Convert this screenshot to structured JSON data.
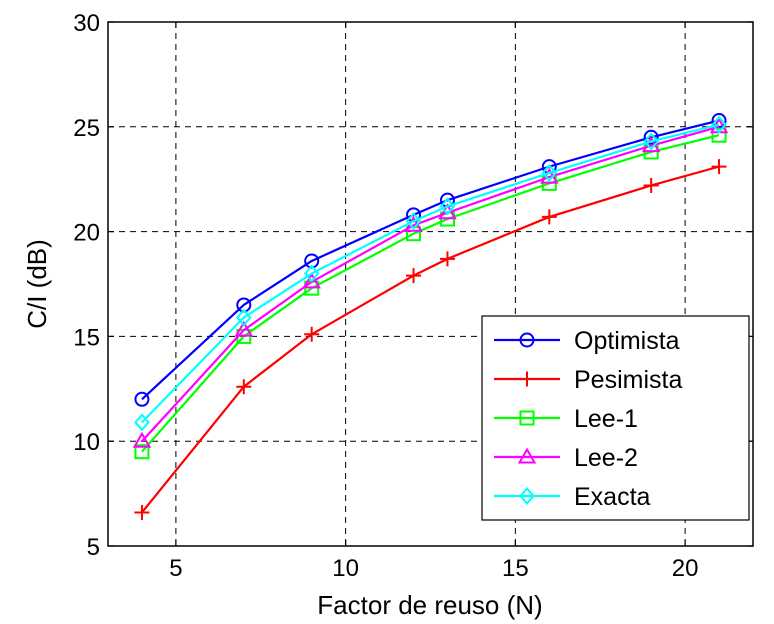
{
  "chart_data": {
    "type": "line",
    "xlabel": "Factor de reuso (N)",
    "ylabel": "C/I (dB)",
    "xlim": [
      3,
      22
    ],
    "ylim": [
      5,
      30
    ],
    "xticks": [
      5,
      10,
      15,
      20
    ],
    "yticks": [
      5,
      10,
      15,
      20,
      25,
      30
    ],
    "grid": true,
    "legend_position": "bottom-right",
    "x": [
      4,
      7,
      9,
      12,
      13,
      16,
      19,
      21
    ],
    "series": [
      {
        "name": "Optimista",
        "color": "#0000ff",
        "marker": "circle",
        "values": [
          12.0,
          16.5,
          18.6,
          20.8,
          21.5,
          23.1,
          24.5,
          25.3
        ]
      },
      {
        "name": "Pesimista",
        "color": "#ff0000",
        "marker": "plus",
        "values": [
          6.6,
          12.6,
          15.1,
          17.9,
          18.7,
          20.7,
          22.2,
          23.1
        ]
      },
      {
        "name": "Lee-1",
        "color": "#00ff00",
        "marker": "square",
        "values": [
          9.5,
          15.0,
          17.3,
          19.9,
          20.6,
          22.3,
          23.8,
          24.6
        ]
      },
      {
        "name": "Lee-2",
        "color": "#ff00ff",
        "marker": "triangle",
        "values": [
          10.0,
          15.3,
          17.6,
          20.3,
          20.9,
          22.6,
          24.1,
          25.0
        ]
      },
      {
        "name": "Exacta",
        "color": "#00ffff",
        "marker": "diamond",
        "values": [
          10.9,
          15.9,
          18.0,
          20.5,
          21.2,
          22.8,
          24.3,
          25.1
        ]
      }
    ]
  }
}
